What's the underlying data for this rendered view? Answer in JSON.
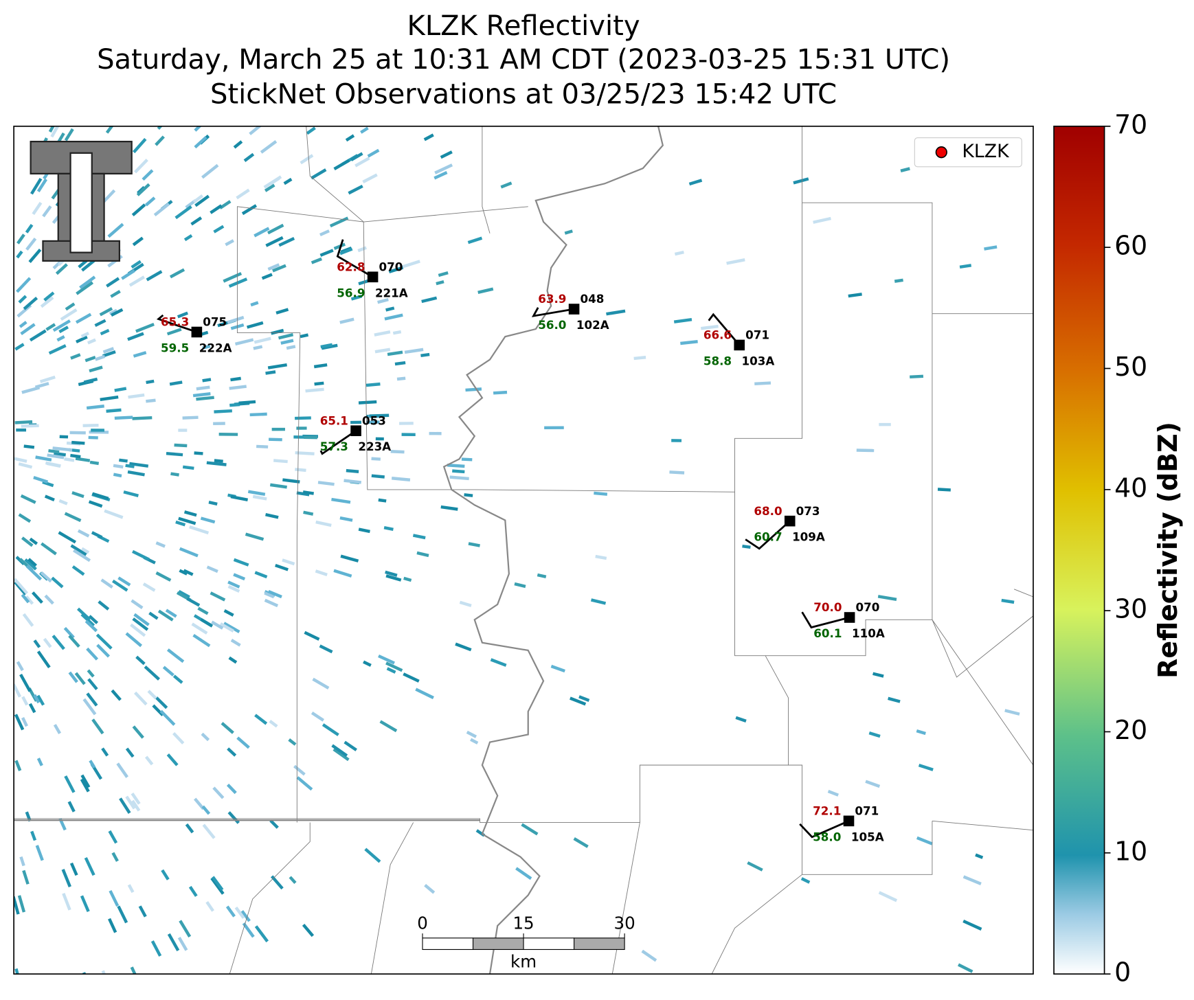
{
  "title": {
    "lines": [
      "KLZK Reflectivity",
      "Saturday, March 25 at 10:31 AM CDT (2023-03-25 15:31 UTC)",
      "StickNet Observations at 03/25/23 15:42 UTC"
    ]
  },
  "legend": {
    "label": "KLZK"
  },
  "colorbar": {
    "label": "Reflectivity (dBZ)",
    "lim": [
      0,
      70
    ],
    "ticks": [
      0,
      10,
      20,
      30,
      40,
      50,
      60,
      70
    ]
  },
  "scale_bar": {
    "ticks": [
      0,
      15,
      30
    ],
    "unit": "km"
  },
  "stations": [
    {
      "id": "221A",
      "temperature": "62.8",
      "dewpoint": "56.9",
      "wind": "070"
    },
    {
      "id": "222A",
      "temperature": "65.3",
      "dewpoint": "59.5",
      "wind": "075"
    },
    {
      "id": "102A",
      "temperature": "63.9",
      "dewpoint": "56.0",
      "wind": "048"
    },
    {
      "id": "103A",
      "temperature": "66.6",
      "dewpoint": "58.8",
      "wind": "071"
    },
    {
      "id": "223A",
      "temperature": "65.1",
      "dewpoint": "57.3",
      "wind": "053"
    },
    {
      "id": "109A",
      "temperature": "68.0",
      "dewpoint": "60.7",
      "wind": "073"
    },
    {
      "id": "110A",
      "temperature": "70.0",
      "dewpoint": "60.1",
      "wind": "070"
    },
    {
      "id": "105A",
      "temperature": "72.1",
      "dewpoint": "58.0",
      "wind": "071"
    }
  ]
}
